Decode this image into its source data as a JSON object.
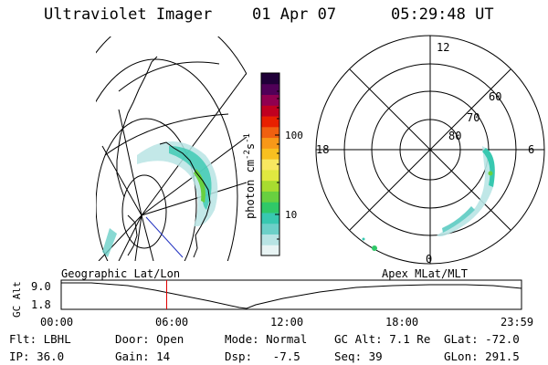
{
  "header": {
    "instrument": "Ultraviolet Imager",
    "date": "01 Apr 07",
    "time": "05:29:48 UT"
  },
  "colorbar": {
    "unit_label": "photon cm",
    "unit_sup1": "-2",
    "unit_mid": "s",
    "unit_sup2": "-1",
    "tick_100": "100",
    "tick_10": "10",
    "colors": [
      "#e8f4f4",
      "#b8e4e4",
      "#6cd0c8",
      "#38c8b0",
      "#30c868",
      "#68d040",
      "#a8dc30",
      "#e0e840",
      "#f8e860",
      "#f8c020",
      "#f89818",
      "#f06010",
      "#e82000",
      "#c00020",
      "#900050",
      "#500058",
      "#200038"
    ]
  },
  "geo_panel": {
    "lat_label": "Geographic Lat/Lon"
  },
  "polar_panel": {
    "mlt_12": "12",
    "mlt_18": "18",
    "mlt_6": "6",
    "mlt_0": "0",
    "lat_60": "60",
    "lat_70": "70",
    "lat_80": "80",
    "apex_label": "Apex  MLat/MLT"
  },
  "altitude_plot": {
    "ylabel": "GC Alt",
    "y_top": "9.0",
    "y_bottom": "1.8",
    "x_ticks": [
      "00:00",
      "06:00",
      "12:00",
      "18:00",
      "23:59"
    ],
    "current_time_marker_hours": 5.5
  },
  "info": {
    "flt": "Flt: LBHL",
    "door": "Door: Open",
    "mode": "Mode: Normal",
    "gcalt": "GC Alt: 7.1 Re",
    "glat": "GLat: -72.0",
    "ip": "IP: 36.0",
    "gain": "Gain: 14",
    "dsp": "Dsp:   -7.5",
    "seq": "Seq: 39",
    "glon": "GLon: 291.5"
  }
}
